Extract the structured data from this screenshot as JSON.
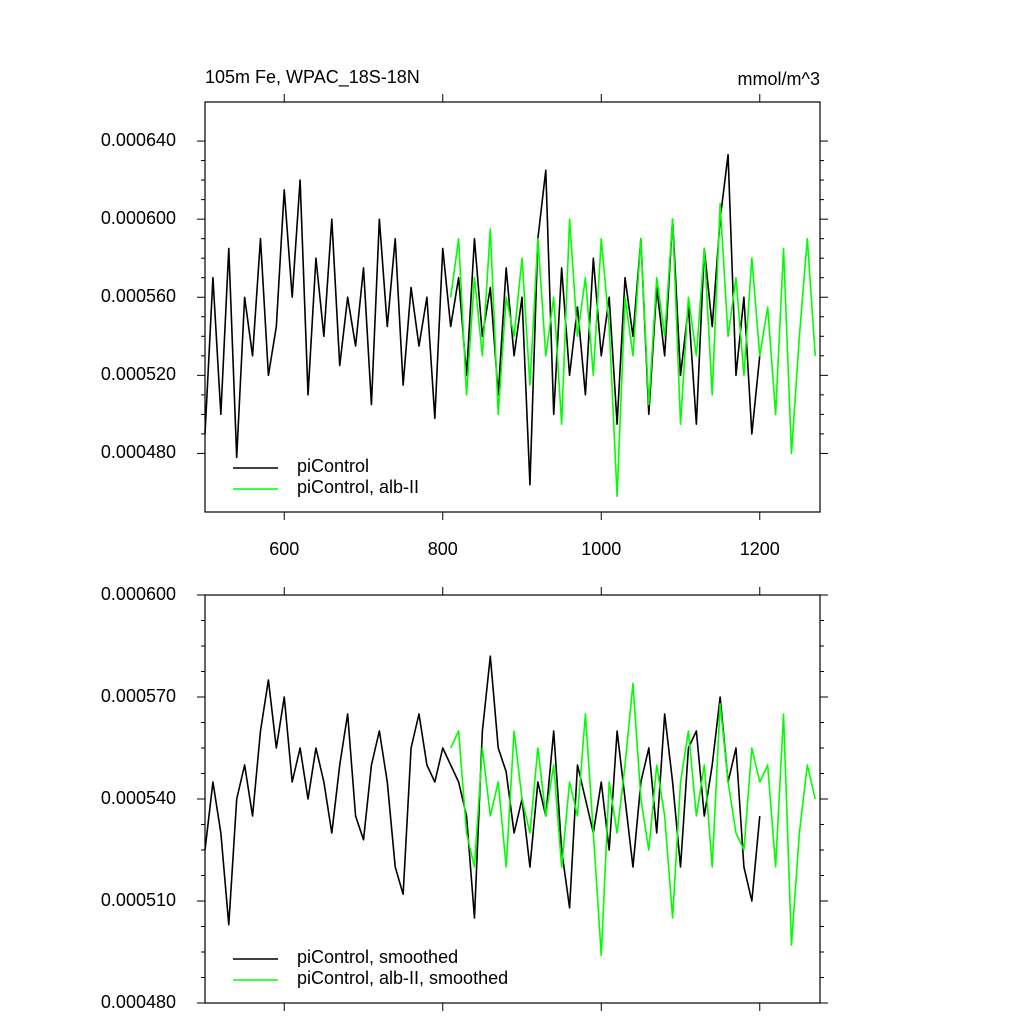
{
  "chart_data": [
    {
      "type": "line",
      "title": "105m Fe, WPAC_18S-18N",
      "units": "mmol/m^3",
      "xlim": [
        500,
        1276
      ],
      "xticks": [
        600,
        800,
        1000,
        1200
      ],
      "xtick_labels": true,
      "ylim": [
        0.00045,
        0.00066
      ],
      "yticks": [
        {
          "value": 0.00048,
          "label": "0.000480"
        },
        {
          "value": 0.00052,
          "label": "0.000520"
        },
        {
          "value": 0.00056,
          "label": "0.000560"
        },
        {
          "value": 0.0006,
          "label": "0.000600"
        },
        {
          "value": 0.00064,
          "label": "0.000640"
        }
      ],
      "legend": "lower left",
      "series": [
        {
          "name": "piControl",
          "color": "#000000",
          "x": [
            500,
            510,
            520,
            530,
            540,
            550,
            560,
            570,
            580,
            590,
            600,
            610,
            620,
            630,
            640,
            650,
            660,
            670,
            680,
            690,
            700,
            710,
            720,
            730,
            740,
            750,
            760,
            770,
            780,
            790,
            800,
            810,
            820,
            830,
            840,
            850,
            860,
            870,
            880,
            890,
            900,
            910,
            920,
            930,
            940,
            950,
            960,
            970,
            980,
            990,
            1000,
            1010,
            1020,
            1030,
            1040,
            1050,
            1060,
            1070,
            1080,
            1090,
            1100,
            1110,
            1120,
            1130,
            1140,
            1150,
            1160,
            1170,
            1180,
            1190,
            1200
          ],
          "values": [
            0.00049,
            0.00057,
            0.0005,
            0.000585,
            0.000478,
            0.00056,
            0.00053,
            0.00059,
            0.00052,
            0.000545,
            0.000615,
            0.00056,
            0.00062,
            0.00051,
            0.00058,
            0.00054,
            0.0006,
            0.000525,
            0.00056,
            0.000535,
            0.000575,
            0.000505,
            0.0006,
            0.000545,
            0.00059,
            0.000515,
            0.000565,
            0.000535,
            0.00056,
            0.000498,
            0.000585,
            0.000545,
            0.00057,
            0.00052,
            0.00059,
            0.00054,
            0.000565,
            0.00051,
            0.000575,
            0.00053,
            0.00056,
            0.000464,
            0.00059,
            0.000625,
            0.0005,
            0.000575,
            0.00052,
            0.000555,
            0.00051,
            0.00058,
            0.00053,
            0.00056,
            0.000495,
            0.00057,
            0.00054,
            0.00059,
            0.0005,
            0.000565,
            0.00053,
            0.0006,
            0.00052,
            0.000555,
            0.000495,
            0.000585,
            0.000545,
            0.0006,
            0.000633,
            0.00052,
            0.00056,
            0.00049,
            0.00053
          ]
        },
        {
          "name": "piControl, alb-II",
          "color": "#00ff00",
          "x": [
            810,
            820,
            830,
            840,
            850,
            860,
            870,
            880,
            890,
            900,
            910,
            920,
            930,
            940,
            950,
            960,
            970,
            980,
            990,
            1000,
            1010,
            1020,
            1030,
            1040,
            1050,
            1060,
            1070,
            1080,
            1090,
            1100,
            1110,
            1120,
            1130,
            1140,
            1150,
            1160,
            1170,
            1180,
            1190,
            1200,
            1210,
            1220,
            1230,
            1240,
            1250,
            1260,
            1270
          ],
          "values": [
            0.00056,
            0.00059,
            0.00051,
            0.00057,
            0.00053,
            0.000595,
            0.0005,
            0.00056,
            0.00054,
            0.00058,
            0.000515,
            0.00059,
            0.00053,
            0.00056,
            0.000495,
            0.0006,
            0.00054,
            0.00057,
            0.00052,
            0.00059,
            0.000545,
            0.000458,
            0.00056,
            0.00053,
            0.00059,
            0.000505,
            0.00057,
            0.00054,
            0.0006,
            0.000495,
            0.00056,
            0.00053,
            0.000585,
            0.00051,
            0.000608,
            0.00054,
            0.00057,
            0.00052,
            0.00058,
            0.00053,
            0.000555,
            0.0005,
            0.000585,
            0.00048,
            0.00054,
            0.00059,
            0.00053
          ]
        }
      ]
    },
    {
      "type": "line",
      "xlim": [
        500,
        1276
      ],
      "xticks": [
        600,
        800,
        1000,
        1200
      ],
      "xtick_labels": false,
      "ylim": [
        0.00048,
        0.0006
      ],
      "yticks": [
        {
          "value": 0.00048,
          "label": "0.000480"
        },
        {
          "value": 0.00051,
          "label": "0.000510"
        },
        {
          "value": 0.00054,
          "label": "0.000540"
        },
        {
          "value": 0.00057,
          "label": "0.000570"
        },
        {
          "value": 0.0006,
          "label": "0.000600"
        }
      ],
      "legend": "lower left",
      "series": [
        {
          "name": "piControl, smoothed",
          "color": "#000000",
          "x": [
            500,
            510,
            520,
            530,
            540,
            550,
            560,
            570,
            580,
            590,
            600,
            610,
            620,
            630,
            640,
            650,
            660,
            670,
            680,
            690,
            700,
            710,
            720,
            730,
            740,
            750,
            760,
            770,
            780,
            790,
            800,
            810,
            820,
            830,
            840,
            850,
            860,
            870,
            880,
            890,
            900,
            910,
            920,
            930,
            940,
            950,
            960,
            970,
            980,
            990,
            1000,
            1010,
            1020,
            1030,
            1040,
            1050,
            1060,
            1070,
            1080,
            1090,
            1100,
            1110,
            1120,
            1130,
            1140,
            1150,
            1160,
            1170,
            1180,
            1190,
            1200
          ],
          "values": [
            0.000525,
            0.000545,
            0.00053,
            0.000503,
            0.00054,
            0.00055,
            0.000535,
            0.00056,
            0.000575,
            0.000555,
            0.00057,
            0.000545,
            0.000555,
            0.00054,
            0.000555,
            0.000545,
            0.00053,
            0.00055,
            0.000565,
            0.000535,
            0.000528,
            0.00055,
            0.00056,
            0.000545,
            0.00052,
            0.000512,
            0.000555,
            0.000565,
            0.00055,
            0.000545,
            0.000555,
            0.00055,
            0.000545,
            0.000535,
            0.000505,
            0.00056,
            0.000582,
            0.000555,
            0.000548,
            0.00053,
            0.00054,
            0.00052,
            0.000545,
            0.000535,
            0.00056,
            0.000525,
            0.000508,
            0.00055,
            0.00054,
            0.00053,
            0.000545,
            0.000525,
            0.00056,
            0.00054,
            0.00052,
            0.000545,
            0.000555,
            0.00053,
            0.000565,
            0.000545,
            0.00052,
            0.000555,
            0.00056,
            0.000535,
            0.00055,
            0.00057,
            0.000545,
            0.000555,
            0.00052,
            0.00051,
            0.000535
          ]
        },
        {
          "name": "piControl, alb-II, smoothed",
          "color": "#00ff00",
          "x": [
            810,
            820,
            830,
            840,
            850,
            860,
            870,
            880,
            890,
            900,
            910,
            920,
            930,
            940,
            950,
            960,
            970,
            980,
            990,
            1000,
            1010,
            1020,
            1030,
            1040,
            1050,
            1060,
            1070,
            1080,
            1090,
            1100,
            1110,
            1120,
            1130,
            1140,
            1150,
            1160,
            1170,
            1180,
            1190,
            1200,
            1210,
            1220,
            1230,
            1240,
            1250,
            1260,
            1270
          ],
          "values": [
            0.000555,
            0.00056,
            0.00053,
            0.00052,
            0.000555,
            0.000535,
            0.000545,
            0.00052,
            0.00056,
            0.00054,
            0.00053,
            0.000555,
            0.000535,
            0.00055,
            0.00052,
            0.000545,
            0.000535,
            0.000565,
            0.00053,
            0.000494,
            0.000545,
            0.00053,
            0.00055,
            0.000574,
            0.00054,
            0.000525,
            0.00055,
            0.000535,
            0.000505,
            0.000545,
            0.00056,
            0.000535,
            0.00055,
            0.00052,
            0.000568,
            0.000545,
            0.00053,
            0.000525,
            0.000555,
            0.000545,
            0.00055,
            0.00052,
            0.000565,
            0.000497,
            0.00053,
            0.00055,
            0.00054
          ]
        }
      ]
    }
  ]
}
